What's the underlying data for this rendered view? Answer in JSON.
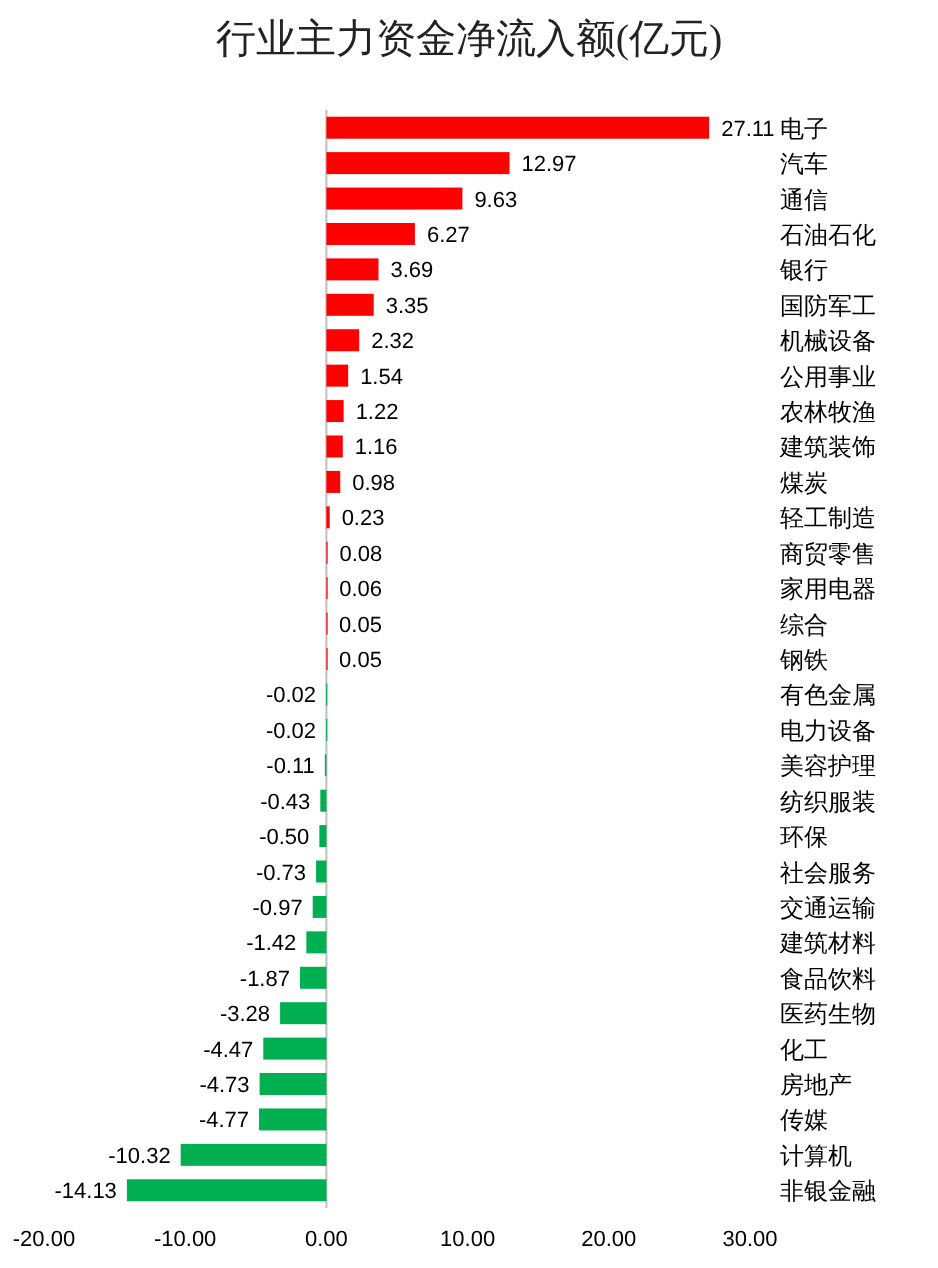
{
  "chart_data": {
    "type": "bar",
    "orientation": "horizontal",
    "title": "行业主力资金净流入额(亿元)",
    "categories": [
      "电子",
      "汽车",
      "通信",
      "石油石化",
      "银行",
      "国防军工",
      "机械设备",
      "公用事业",
      "农林牧渔",
      "建筑装饰",
      "煤炭",
      "轻工制造",
      "商贸零售",
      "家用电器",
      "综合",
      "钢铁",
      "有色金属",
      "电力设备",
      "美容护理",
      "纺织服装",
      "环保",
      "社会服务",
      "交通运输",
      "建筑材料",
      "食品饮料",
      "医药生物",
      "化工",
      "房地产",
      "传媒",
      "计算机",
      "非银金融"
    ],
    "values": [
      27.11,
      12.97,
      9.63,
      6.27,
      3.69,
      3.35,
      2.32,
      1.54,
      1.22,
      1.16,
      0.98,
      0.23,
      0.08,
      0.06,
      0.05,
      0.05,
      -0.02,
      -0.02,
      -0.11,
      -0.43,
      -0.5,
      -0.73,
      -0.97,
      -1.42,
      -1.87,
      -3.28,
      -4.47,
      -4.73,
      -4.77,
      -10.32,
      -14.13
    ],
    "value_labels": [
      "27.11",
      "12.97",
      "9.63",
      "6.27",
      "3.69",
      "3.35",
      "2.32",
      "1.54",
      "1.22",
      "1.16",
      "0.98",
      "0.23",
      "0.08",
      "0.06",
      "0.05",
      "0.05",
      "-0.02",
      "-0.02",
      "-0.11",
      "-0.43",
      "-0.50",
      "-0.73",
      "-0.97",
      "-1.42",
      "-1.87",
      "-3.28",
      "-4.47",
      "-4.73",
      "-4.77",
      "-10.32",
      "-14.13"
    ],
    "colors": [
      "#ff0000",
      "#ff0000",
      "#ff0000",
      "#ff0000",
      "#ff0000",
      "#ff0000",
      "#ff0000",
      "#ff0000",
      "#ff0000",
      "#ff0000",
      "#ff0000",
      "#ff0000",
      "#ff0000",
      "#ff0000",
      "#ff0000",
      "#ff0000",
      "#00b050",
      "#00b050",
      "#00b050",
      "#00b050",
      "#00b050",
      "#00b050",
      "#00b050",
      "#00b050",
      "#00b050",
      "#00b050",
      "#00b050",
      "#00b050",
      "#00b050",
      "#00b050",
      "#00b050"
    ],
    "xlim": [
      -20,
      30
    ],
    "xticks": [
      {
        "value": -20,
        "label": "-20.00"
      },
      {
        "value": -10,
        "label": "-10.00"
      },
      {
        "value": 0,
        "label": "0.00"
      },
      {
        "value": 10,
        "label": "10.00"
      },
      {
        "value": 20,
        "label": "20.00"
      },
      {
        "value": 30,
        "label": "30.00"
      }
    ]
  }
}
